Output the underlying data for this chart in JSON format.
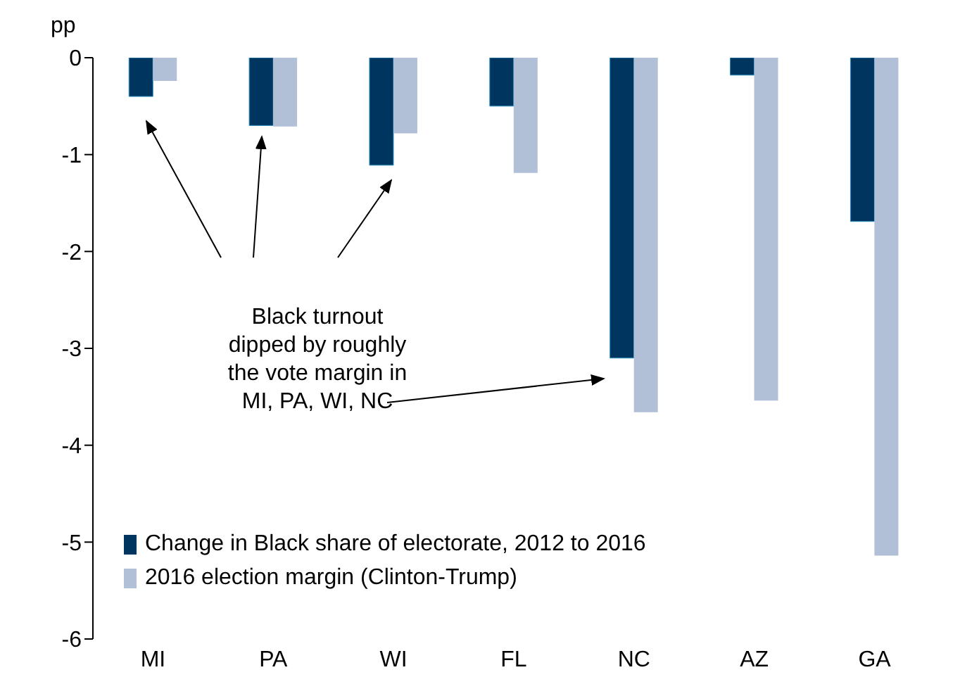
{
  "chart_data": {
    "type": "bar",
    "ylabel": "pp",
    "categories": [
      "MI",
      "PA",
      "WI",
      "FL",
      "NC",
      "AZ",
      "GA"
    ],
    "series": [
      {
        "name": "Change in Black share of electorate, 2012 to 2016",
        "color": "#003560",
        "values": [
          -0.4,
          -0.7,
          -1.11,
          -0.5,
          -3.1,
          -0.18,
          -1.69
        ]
      },
      {
        "name": "2016 election margin (Clinton-Trump)",
        "color": "#b1c0d7",
        "values": [
          -0.24,
          -0.71,
          -0.78,
          -1.19,
          -3.66,
          -3.54,
          -5.14
        ]
      }
    ],
    "ylim": [
      -6,
      0
    ],
    "yticks": [
      -6,
      -5,
      -4,
      -3,
      -2,
      -1,
      0
    ],
    "grid": false,
    "legend": "bottom left",
    "annotations": [
      "Black turnout\ndipped by roughly\nthe vote margin in\nMI, PA, WI, NC"
    ]
  }
}
